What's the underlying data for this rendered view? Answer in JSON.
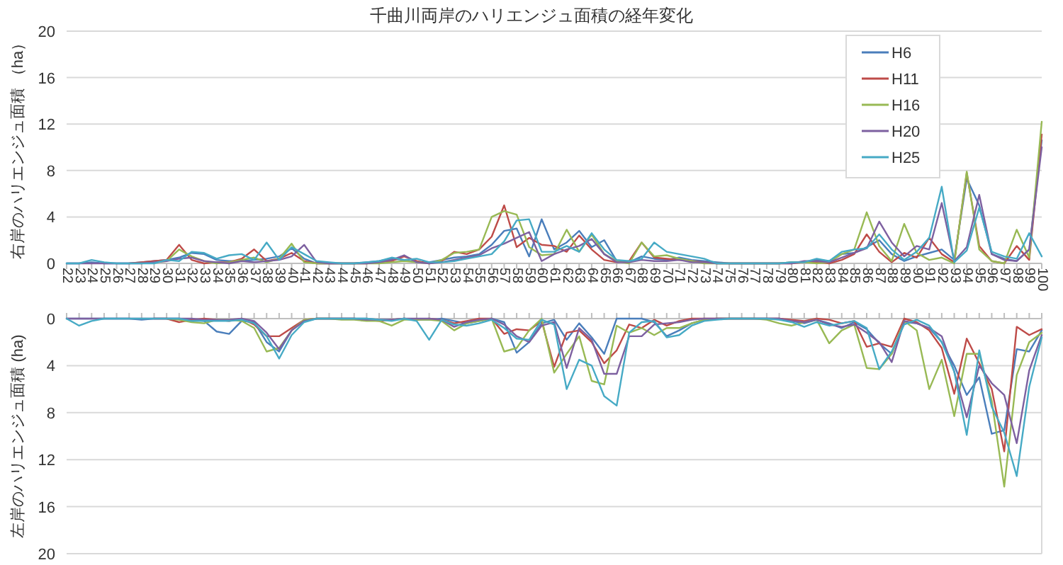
{
  "chart_data": [
    {
      "type": "line",
      "title": "千曲川両岸のハリエンジュ面積の経年変化",
      "ylabel": "右岸のハリエンジュ面積 （ha）",
      "categories": [
        "22",
        "23",
        "24",
        "25",
        "26",
        "27",
        "28",
        "29",
        "30",
        "31",
        "32",
        "33",
        "34",
        "35",
        "36",
        "37",
        "38",
        "39",
        "40",
        "41",
        "42",
        "43",
        "44",
        "45",
        "46",
        "47",
        "48",
        "49",
        "50",
        "51",
        "52",
        "53",
        "54",
        "55",
        "56",
        "57",
        "58",
        "59",
        "60",
        "61",
        "62",
        "63",
        "64",
        "65",
        "66",
        "67",
        "68",
        "69",
        "70",
        "71",
        "72",
        "73",
        "74",
        "75",
        "76",
        "77",
        "78",
        "79",
        "80",
        "81",
        "82",
        "83",
        "84",
        "85",
        "86",
        "87",
        "88",
        "89",
        "90",
        "91",
        "92",
        "93",
        "94",
        "95",
        "96",
        "97",
        "98",
        "99",
        "100"
      ],
      "ylim": [
        0,
        20
      ],
      "yticks": [
        0,
        4,
        8,
        12,
        16,
        20
      ],
      "grid": "y",
      "legend": "top right",
      "series": [
        {
          "name": "H6",
          "color": "#4a7ebb",
          "values": [
            0,
            0,
            0.1,
            0,
            0,
            0,
            0.1,
            0.2,
            0.3,
            0.5,
            0.9,
            0.8,
            0.3,
            0.2,
            0.2,
            0.3,
            0.4,
            0.6,
            1.3,
            0.4,
            0,
            0,
            0,
            0,
            0.1,
            0.2,
            0.4,
            0.3,
            0.1,
            0.1,
            0.3,
            0.5,
            0.6,
            0.8,
            1.6,
            2.8,
            3.0,
            0.6,
            3.8,
            1.2,
            1.8,
            2.8,
            1.4,
            2.0,
            0.2,
            0.1,
            0.6,
            0.4,
            0.3,
            0.5,
            0.3,
            0.2,
            0.1,
            0,
            0,
            0,
            0,
            0,
            0.1,
            0.1,
            0.3,
            0.2,
            0.8,
            0.9,
            1.4,
            2.0,
            0.8,
            0.2,
            0.6,
            0.9,
            1.2,
            0.3,
            7.3,
            5.0,
            0.8,
            0.4,
            0.2,
            1.2,
            10.6
          ]
        },
        {
          "name": "H11",
          "color": "#be4b48",
          "values": [
            null,
            null,
            null,
            null,
            null,
            0,
            0.1,
            0.2,
            0.3,
            1.6,
            0.3,
            0,
            0.1,
            0.1,
            0.4,
            1.2,
            0.2,
            0.4,
            0.9,
            0.2,
            0,
            0,
            0,
            0,
            0,
            0.1,
            0.2,
            0.6,
            0.2,
            0,
            0.2,
            1.0,
            0.8,
            1.2,
            2.3,
            5.0,
            1.4,
            2.2,
            1.6,
            1.5,
            1.0,
            2.4,
            1.2,
            0.3,
            0.1,
            0.2,
            1.8,
            0.5,
            0.4,
            0.3,
            0.2,
            0.1,
            0,
            0,
            0,
            0,
            0,
            0,
            0,
            0.1,
            0.1,
            0,
            0.3,
            0.8,
            2.5,
            1.0,
            0.1,
            0.9,
            0.5,
            2.2,
            0.8,
            0.1,
            7.8,
            1.5,
            0.2,
            0,
            1.5,
            0.3,
            11.1
          ]
        },
        {
          "name": "H16",
          "color": "#98b954",
          "values": [
            null,
            null,
            null,
            null,
            null,
            null,
            null,
            0.1,
            0.2,
            1.2,
            0.6,
            0.2,
            0,
            0.1,
            0.3,
            0.5,
            0.1,
            0.4,
            1.7,
            0.1,
            0,
            0,
            0,
            0,
            0,
            0,
            0.1,
            0.2,
            0.1,
            0,
            0.3,
            0.9,
            1.0,
            1.2,
            4.0,
            4.5,
            4.2,
            1.4,
            0.7,
            0.8,
            2.9,
            1.0,
            2.5,
            0.8,
            0.2,
            0,
            1.8,
            0.6,
            0.7,
            0.4,
            0.2,
            0,
            0,
            0,
            0,
            0,
            0,
            0,
            0.1,
            0.1,
            0,
            0.1,
            0.8,
            1.2,
            4.4,
            1.5,
            0.2,
            3.4,
            0.9,
            0.3,
            0.5,
            0,
            7.9,
            1.2,
            0.2,
            0,
            2.9,
            0.5,
            12.2
          ]
        },
        {
          "name": "H20",
          "color": "#7d60a0",
          "values": [
            0,
            0,
            0,
            0,
            0,
            0,
            0,
            0.1,
            0.2,
            0.4,
            0.5,
            0.2,
            0.1,
            0,
            0.2,
            0.1,
            0.2,
            0.3,
            0.6,
            1.6,
            0.1,
            0,
            0,
            0,
            0,
            0.1,
            0.3,
            0.7,
            0.1,
            0,
            0.1,
            0.3,
            0.5,
            0.7,
            1.3,
            1.7,
            2.2,
            2.7,
            0.2,
            0.8,
            1.2,
            1.5,
            2.1,
            0.8,
            0.1,
            0.1,
            0.3,
            0.2,
            0.2,
            0.3,
            0.1,
            0.1,
            0,
            0,
            0,
            0,
            0,
            0,
            0,
            0.2,
            0.2,
            0.1,
            0.5,
            0.9,
            1.3,
            3.6,
            1.8,
            0.6,
            1.5,
            1.2,
            5.2,
            0.2,
            1.4,
            5.9,
            0.8,
            0.3,
            0.2,
            1.2,
            10.0
          ]
        },
        {
          "name": "H25",
          "color": "#46aac5",
          "values": [
            0,
            0,
            0.3,
            0.1,
            0,
            0,
            0,
            0,
            0.3,
            0.2,
            1.0,
            0.9,
            0.4,
            0.7,
            0.8,
            0.3,
            1.8,
            0.3,
            1.4,
            0.8,
            0.2,
            0.1,
            0,
            0,
            0.1,
            0.2,
            0.5,
            0.3,
            0.4,
            0.1,
            0.1,
            0.2,
            0.4,
            0.6,
            0.8,
            1.9,
            3.7,
            3.8,
            1.0,
            1.0,
            1.5,
            1.0,
            2.6,
            1.2,
            0.3,
            0.2,
            0.4,
            1.8,
            1.0,
            0.8,
            0.6,
            0.4,
            0,
            0,
            0,
            0,
            0,
            0,
            0.1,
            0.1,
            0.4,
            0.2,
            1.0,
            1.2,
            1.3,
            2.5,
            1.2,
            0.3,
            1.0,
            2.2,
            6.6,
            0.1,
            1.1,
            4.8,
            1.0,
            0.6,
            0.4,
            2.6,
            0.6
          ]
        }
      ]
    },
    {
      "type": "line",
      "ylabel": "左岸のハリエンジュ面積 (ha)",
      "categories": [
        "22",
        "23",
        "24",
        "25",
        "26",
        "27",
        "28",
        "29",
        "30",
        "31",
        "32",
        "33",
        "34",
        "35",
        "36",
        "37",
        "38",
        "39",
        "40",
        "41",
        "42",
        "43",
        "44",
        "45",
        "46",
        "47",
        "48",
        "49",
        "50",
        "51",
        "52",
        "53",
        "54",
        "55",
        "56",
        "57",
        "58",
        "59",
        "60",
        "61",
        "62",
        "63",
        "64",
        "65",
        "66",
        "67",
        "68",
        "69",
        "70",
        "71",
        "72",
        "73",
        "74",
        "75",
        "76",
        "77",
        "78",
        "79",
        "80",
        "81",
        "82",
        "83",
        "84",
        "85",
        "86",
        "87",
        "88",
        "89",
        "90",
        "91",
        "92",
        "93",
        "94",
        "95",
        "96",
        "97",
        "98",
        "99",
        "100"
      ],
      "ylim": [
        20,
        0
      ],
      "yticks": [
        0,
        4,
        8,
        12,
        16,
        20
      ],
      "grid": "y",
      "tick_labels": "y",
      "series": [
        {
          "color": "#4a7ebb",
          "values": [
            0,
            0,
            0,
            0,
            0,
            0,
            0.1,
            0,
            0,
            0,
            0.1,
            0.2,
            1.1,
            1.3,
            0.2,
            0.3,
            2.0,
            2.8,
            1.0,
            0.2,
            0,
            0,
            0,
            0,
            0,
            0.1,
            0.1,
            0,
            0.1,
            0.1,
            0,
            0.2,
            0.4,
            0.2,
            0,
            0.3,
            2.9,
            2.0,
            0.4,
            0.1,
            1.8,
            0.4,
            1.6,
            3.0,
            0,
            0,
            0,
            0.3,
            1.5,
            1.0,
            0.4,
            0.1,
            0,
            0,
            0,
            0,
            0,
            0,
            0.2,
            0.4,
            0.1,
            0.4,
            0.8,
            0.3,
            0.9,
            2.1,
            3.0,
            0.3,
            0.4,
            0.8,
            2.0,
            4.0,
            6.5,
            5.0,
            9.8,
            9.5,
            2.6,
            2.8,
            1.0
          ]
        },
        {
          "color": "#be4b48",
          "values": [
            null,
            null,
            null,
            null,
            null,
            null,
            null,
            0,
            0,
            0.3,
            0.1,
            0,
            0.1,
            0.2,
            0,
            0.5,
            1.5,
            1.5,
            0.8,
            0.1,
            0,
            0,
            0,
            0,
            0.1,
            0.2,
            0.1,
            0,
            0.1,
            0,
            0.1,
            0.4,
            0.2,
            0,
            0,
            1.3,
            0.9,
            1.0,
            0.2,
            4.1,
            1.2,
            1.0,
            2.0,
            3.8,
            2.7,
            0.5,
            0.8,
            0.1,
            0.6,
            0.2,
            0,
            0,
            0,
            0,
            0,
            0,
            0,
            0,
            0.1,
            0.2,
            0,
            0.1,
            0.4,
            0.2,
            2.4,
            2.1,
            2.4,
            0,
            0.3,
            1.0,
            2.5,
            6.4,
            1.7,
            3.8,
            6.0,
            11.3,
            0.7,
            1.4,
            0.9
          ]
        },
        {
          "color": "#98b954",
          "values": [
            null,
            null,
            null,
            null,
            null,
            null,
            null,
            null,
            0,
            0.1,
            0.3,
            0.4,
            0.1,
            0.1,
            0.2,
            0.8,
            2.8,
            2.5,
            1.0,
            0.1,
            0,
            0,
            0.1,
            0.1,
            0.2,
            0.2,
            0.6,
            0.1,
            0.1,
            0.1,
            0.2,
            1.0,
            0.4,
            0.2,
            0,
            2.8,
            2.5,
            1.0,
            0,
            4.6,
            3.0,
            1.5,
            5.3,
            5.6,
            0.6,
            1.2,
            0.8,
            1.4,
            0.8,
            0.8,
            0.4,
            0.1,
            0,
            0,
            0,
            0,
            0.1,
            0.4,
            0.6,
            0.3,
            0.1,
            2.1,
            1.0,
            0.5,
            4.2,
            4.3,
            3.0,
            0.2,
            1.0,
            6.0,
            3.5,
            8.3,
            3.0,
            3.0,
            7.0,
            14.3,
            4.8,
            2.0,
            1.2
          ]
        },
        {
          "color": "#7d60a0",
          "values": [
            0,
            0,
            0,
            0,
            0,
            0,
            0,
            0,
            0,
            0,
            0,
            0.1,
            0.1,
            0.1,
            0,
            0.2,
            1.2,
            2.6,
            1.0,
            0.2,
            0,
            0,
            0,
            0,
            0.1,
            0.1,
            0.1,
            0,
            0,
            0,
            0.1,
            0.7,
            0.3,
            0.1,
            0,
            0.5,
            1.5,
            2.0,
            0.6,
            0.3,
            4.2,
            0.8,
            1.8,
            4.7,
            4.7,
            1.5,
            1.5,
            0.5,
            0.4,
            0.3,
            0.1,
            0,
            0,
            0,
            0,
            0,
            0,
            0,
            0.2,
            0.3,
            0.1,
            0.5,
            0.7,
            0.5,
            1.2,
            2.0,
            3.7,
            0.2,
            0.4,
            0.8,
            1.5,
            4.5,
            8.4,
            4.0,
            5.5,
            6.5,
            10.6,
            4.4,
            1.4
          ]
        },
        {
          "color": "#46aac5",
          "values": [
            0,
            0.6,
            0.2,
            0,
            0,
            0,
            0,
            0,
            0,
            0,
            0.2,
            0.2,
            0.2,
            0.2,
            0.1,
            0.4,
            1.5,
            3.4,
            1.4,
            0.3,
            0,
            0,
            0,
            0,
            0,
            0.1,
            0.2,
            0,
            0.2,
            1.8,
            0.1,
            0.5,
            0.6,
            0.4,
            0.1,
            0.8,
            1.7,
            1.8,
            0.1,
            0.5,
            6.0,
            3.5,
            4.0,
            6.6,
            7.4,
            1.2,
            0.3,
            0.2,
            1.6,
            1.4,
            0.6,
            0.2,
            0.1,
            0,
            0,
            0,
            0,
            0.1,
            0.3,
            0.7,
            0.3,
            0.6,
            0.4,
            0.2,
            0.8,
            4.3,
            2.8,
            0.5,
            0.1,
            0.6,
            2.0,
            4.5,
            9.9,
            2.7,
            7.5,
            9.7,
            13.4,
            5.8,
            1.6
          ]
        }
      ]
    }
  ]
}
